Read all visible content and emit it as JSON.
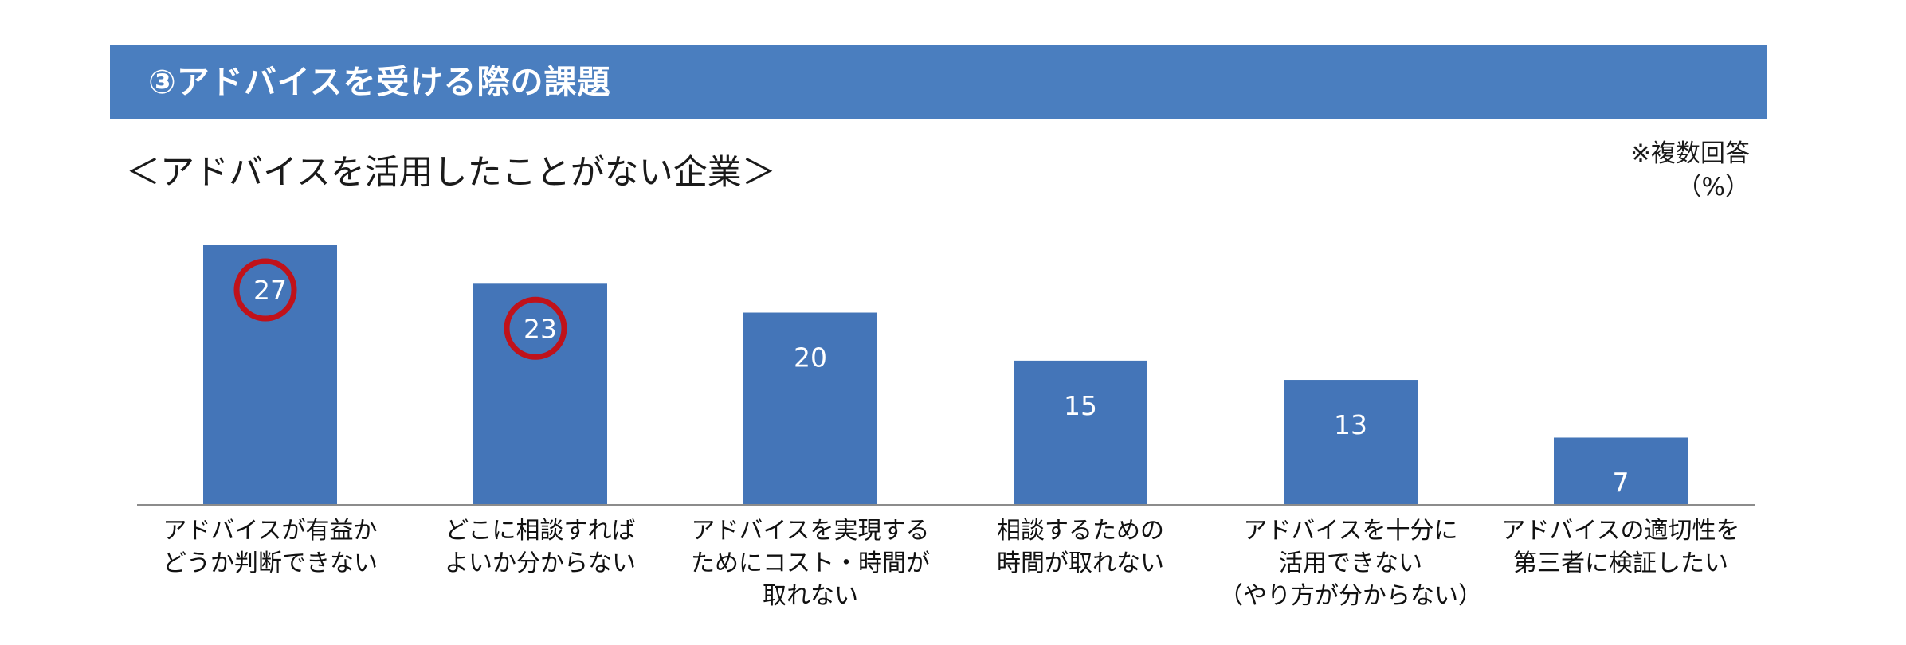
{
  "header": {
    "title": "③アドバイスを受ける際の課題"
  },
  "subtitle": "＜アドバイスを活用したことがない企業＞",
  "note": {
    "line1": "※複数回答",
    "line2": "（%）"
  },
  "chart_data": {
    "type": "bar",
    "categories": [
      [
        "アドバイスが有益か",
        "どうか判断できない"
      ],
      [
        "どこに相談すれば",
        "よいか分からない"
      ],
      [
        "アドバイスを実現する",
        "ためにコスト・時間が",
        "取れない"
      ],
      [
        "相談するための",
        "時間が取れない"
      ],
      [
        "アドバイスを十分に",
        "活用できない",
        "（やり方が分からない）"
      ],
      [
        "アドバイスの適切性を",
        "第三者に検証したい"
      ]
    ],
    "values": [
      27,
      23,
      20,
      15,
      13,
      7
    ],
    "highlighted": [
      0,
      1
    ],
    "bar_color": "#4475b8",
    "highlight_color": "#c0121a",
    "axis_color": "#8c8c8c",
    "ylim": [
      0,
      27
    ]
  }
}
